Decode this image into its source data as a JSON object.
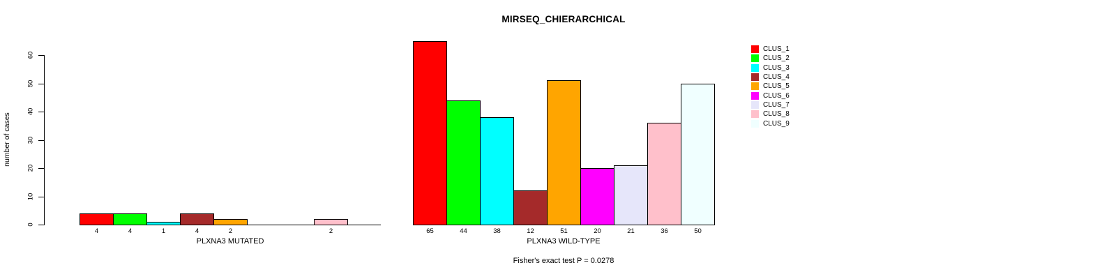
{
  "title": "MIRSEQ_CHIERARCHICAL",
  "ylabel": "number of cases",
  "note": "Fisher's exact test P = 0.0278",
  "legend": {
    "position": "right",
    "entries": [
      {
        "label": "CLUS_1",
        "color": "#FF0000"
      },
      {
        "label": "CLUS_2",
        "color": "#00FF00"
      },
      {
        "label": "CLUS_3",
        "color": "#00FFFF"
      },
      {
        "label": "CLUS_4",
        "color": "#A52A2A"
      },
      {
        "label": "CLUS_5",
        "color": "#FFA500"
      },
      {
        "label": "CLUS_6",
        "color": "#FF00FF"
      },
      {
        "label": "CLUS_7",
        "color": "#E6E6FA"
      },
      {
        "label": "CLUS_8",
        "color": "#FFC0CB"
      },
      {
        "label": "CLUS_9",
        "color": "#F0FFFF"
      }
    ]
  },
  "chart_data": [
    {
      "type": "bar",
      "panel": "mutated",
      "xlabel": "PLXNA3 MUTATED",
      "ylabel": "number of cases",
      "categories": [
        "CLUS_1",
        "CLUS_2",
        "CLUS_3",
        "CLUS_4",
        "CLUS_5",
        "CLUS_6",
        "CLUS_7",
        "CLUS_8",
        "CLUS_9"
      ],
      "values": [
        4,
        4,
        1,
        4,
        2,
        0,
        0,
        2,
        0
      ],
      "bar_value_labels": [
        "4",
        "4",
        "1",
        "4",
        "2",
        "",
        "",
        "2",
        ""
      ],
      "ylim": [
        0,
        60
      ],
      "yticks": [
        0,
        10,
        20,
        30,
        40,
        50,
        60
      ],
      "grid": false,
      "has_y_axis": true
    },
    {
      "type": "bar",
      "panel": "wildtype",
      "xlabel": "PLXNA3 WILD-TYPE",
      "ylabel": "",
      "categories": [
        "CLUS_1",
        "CLUS_2",
        "CLUS_3",
        "CLUS_4",
        "CLUS_5",
        "CLUS_6",
        "CLUS_7",
        "CLUS_8",
        "CLUS_9"
      ],
      "values": [
        65,
        44,
        38,
        12,
        51,
        20,
        21,
        36,
        50
      ],
      "bar_value_labels": [
        "65",
        "44",
        "38",
        "12",
        "51",
        "20",
        "21",
        "36",
        "50"
      ],
      "ylim": [
        0,
        60
      ],
      "yticks": [
        0,
        10,
        20,
        30,
        40,
        50,
        60
      ],
      "grid": false,
      "has_y_axis": false
    }
  ]
}
